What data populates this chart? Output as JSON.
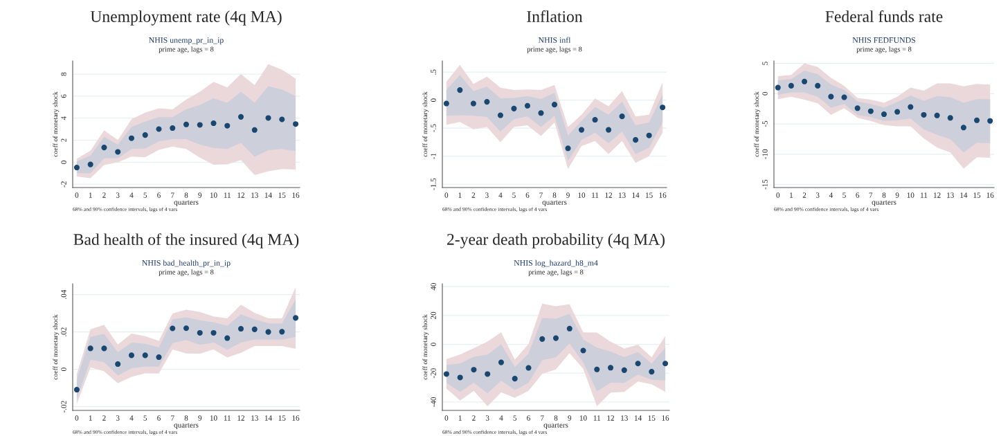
{
  "chart_data": [
    {
      "type": "scatter",
      "title": "Unemployment rate (4q MA)",
      "subtitle": "NHIS unemp_pr_in_ip",
      "xlabel": "quarters",
      "ylabel": "coeff of monetary shock",
      "annotations": [
        "prime age, lags = 8",
        "68% and 90% confidence intervals, lags of 4 vars"
      ],
      "x": [
        0,
        1,
        2,
        3,
        4,
        5,
        6,
        7,
        8,
        9,
        10,
        11,
        12,
        13,
        14,
        15,
        16
      ],
      "xlim": [
        -0.3,
        16.3
      ],
      "xticks": [
        0,
        1,
        2,
        3,
        4,
        5,
        6,
        7,
        8,
        9,
        10,
        11,
        12,
        13,
        14,
        15,
        16
      ],
      "ylim": [
        -2.3,
        9.2
      ],
      "yticks": [
        -2,
        0,
        2,
        4,
        6,
        8
      ],
      "grid": "y",
      "marker": "circle",
      "series": [
        {
          "type": "area",
          "color": "#ead8db",
          "values": [
            null,
            null,
            null,
            null,
            null,
            null,
            null,
            null,
            null,
            null,
            null,
            null,
            null,
            null,
            null,
            null,
            null
          ],
          "lower": [
            -1.3,
            -1.45,
            -0.25,
            0.0,
            0.52,
            0.45,
            1.13,
            1.42,
            1.2,
            0.42,
            -0.23,
            -0.2,
            0.2,
            -1.17,
            -0.83,
            -0.62,
            -0.67
          ],
          "upper": [
            0.33,
            1.05,
            2.9,
            2.0,
            3.9,
            4.5,
            4.9,
            4.8,
            5.7,
            6.4,
            7.3,
            6.8,
            8.0,
            7.0,
            8.9,
            8.4,
            7.6
          ]
        },
        {
          "type": "area",
          "color": "#cdcfda",
          "values": [
            null,
            null,
            null,
            null,
            null,
            null,
            null,
            null,
            null,
            null,
            null,
            null,
            null,
            null,
            null,
            null,
            null
          ],
          "lower": [
            -1.0,
            -1.0,
            0.35,
            0.35,
            1.2,
            1.25,
            1.9,
            2.1,
            2.1,
            1.6,
            1.3,
            1.2,
            1.75,
            0.5,
            1.1,
            1.2,
            1.0
          ],
          "upper": [
            0.08,
            0.6,
            2.3,
            1.6,
            3.2,
            3.7,
            4.1,
            4.1,
            4.8,
            5.2,
            5.8,
            5.4,
            6.4,
            5.4,
            6.9,
            6.6,
            6.0
          ]
        },
        {
          "type": "scatter",
          "color": "#1a476f",
          "values": [
            -0.48,
            -0.2,
            1.34,
            0.94,
            2.18,
            2.47,
            3.01,
            3.1,
            3.43,
            3.39,
            3.54,
            3.31,
            4.12,
            2.93,
            4.02,
            3.89,
            3.47
          ]
        }
      ]
    },
    {
      "type": "scatter",
      "title": "Inflation",
      "subtitle": "NHIS infl",
      "xlabel": "quarters",
      "ylabel": "coeff of monetary shock",
      "annotations": [
        "prime age, lags = 8",
        "68% and 90% confidence intervals, lags of 4 vars"
      ],
      "x": [
        0,
        1,
        2,
        3,
        4,
        5,
        6,
        7,
        8,
        9,
        10,
        11,
        12,
        13,
        14,
        15,
        16
      ],
      "xlim": [
        -0.3,
        16.3
      ],
      "xticks": [
        0,
        1,
        2,
        3,
        4,
        5,
        6,
        7,
        8,
        9,
        10,
        11,
        12,
        13,
        14,
        15,
        16
      ],
      "ylim": [
        -1.56,
        0.7
      ],
      "yticks": [
        {
          "value": -1.5,
          "label": "-1.5"
        },
        -1,
        {
          "value": -0.5,
          "label": "-.5"
        },
        0,
        {
          "value": 0.5,
          "label": ".5"
        }
      ],
      "grid": "y",
      "marker": "circle",
      "series": [
        {
          "type": "area",
          "color": "#ead8db",
          "values": [
            null,
            null,
            null,
            null,
            null,
            null,
            null,
            null,
            null,
            null,
            null,
            null,
            null,
            null,
            null,
            null,
            null
          ],
          "lower": [
            -0.44,
            -0.39,
            -0.52,
            -0.48,
            -0.75,
            -0.48,
            -0.45,
            -0.64,
            -0.4,
            -1.23,
            -0.82,
            -0.73,
            -0.96,
            -0.73,
            -1.12,
            -1.0,
            -0.58
          ],
          "upper": [
            0.33,
            0.63,
            0.29,
            0.42,
            0.22,
            0.18,
            0.19,
            0.18,
            0.27,
            -0.48,
            -0.26,
            0.03,
            -0.11,
            0.16,
            -0.29,
            -0.26,
            0.32
          ]
        },
        {
          "type": "area",
          "color": "#cdcfda",
          "values": [
            null,
            null,
            null,
            null,
            null,
            null,
            null,
            null,
            null,
            null,
            null,
            null,
            null,
            null,
            null,
            null,
            null
          ],
          "lower": [
            -0.28,
            -0.27,
            -0.28,
            -0.3,
            -0.56,
            -0.34,
            -0.29,
            -0.48,
            -0.28,
            -1.08,
            -0.71,
            -0.58,
            -0.77,
            -0.56,
            -0.96,
            -0.85,
            -0.4
          ],
          "upper": [
            0.18,
            0.45,
            0.16,
            0.24,
            0.03,
            0.04,
            0.07,
            0.02,
            0.13,
            -0.63,
            -0.37,
            -0.12,
            -0.26,
            -0.03,
            -0.45,
            -0.4,
            0.1
          ]
        },
        {
          "type": "scatter",
          "color": "#1a476f",
          "values": [
            -0.06,
            0.18,
            -0.06,
            -0.03,
            -0.27,
            -0.15,
            -0.1,
            -0.23,
            -0.08,
            -0.86,
            -0.53,
            -0.35,
            -0.53,
            -0.29,
            -0.71,
            -0.63,
            -0.13
          ]
        }
      ]
    },
    {
      "type": "scatter",
      "title": "Federal funds rate",
      "subtitle": "NHIS FEDFUNDS",
      "xlabel": "quarters",
      "ylabel": "coeff of monetary shock",
      "annotations": [
        "prime age, lags = 8",
        "68% and 90% confidence intervals, lags of 4 vars"
      ],
      "x": [
        0,
        1,
        2,
        3,
        4,
        5,
        6,
        7,
        8,
        9,
        10,
        11,
        12,
        13,
        14,
        15,
        16
      ],
      "xlim": [
        -0.3,
        16.3
      ],
      "xticks": [
        0,
        1,
        2,
        3,
        4,
        5,
        6,
        7,
        8,
        9,
        10,
        11,
        12,
        13,
        14,
        15,
        16
      ],
      "ylim": [
        -15.5,
        5.4
      ],
      "yticks": [
        -15,
        -10,
        -5,
        0,
        5
      ],
      "grid": "y",
      "marker": "circle",
      "series": [
        {
          "type": "area",
          "color": "#ead8db",
          "values": [
            null,
            null,
            null,
            null,
            null,
            null,
            null,
            null,
            null,
            null,
            null,
            null,
            null,
            null,
            null,
            null,
            null
          ],
          "lower": [
            -0.9,
            -0.5,
            -1.0,
            -1.6,
            -3.5,
            -2.4,
            -4.0,
            -4.5,
            -5.2,
            -5.4,
            -5.4,
            -7.4,
            -8.9,
            -9.7,
            -12.4,
            -10.5,
            -10.6
          ],
          "upper": [
            2.9,
            3.1,
            5.0,
            4.4,
            2.6,
            1.3,
            -0.7,
            -1.0,
            -1.5,
            -0.5,
            1.0,
            0.5,
            1.7,
            1.7,
            1.2,
            1.6,
            1.5
          ]
        },
        {
          "type": "area",
          "color": "#cdcfda",
          "values": [
            null,
            null,
            null,
            null,
            null,
            null,
            null,
            null,
            null,
            null,
            null,
            null,
            null,
            null,
            null,
            null,
            null
          ],
          "lower": [
            -0.2,
            0.2,
            0.2,
            -0.5,
            -2.3,
            -1.7,
            -3.5,
            -3.9,
            -4.5,
            -4.4,
            -4.1,
            -5.9,
            -6.8,
            -7.5,
            -9.7,
            -8.1,
            -8.2
          ],
          "upper": [
            2.2,
            2.4,
            3.8,
            3.2,
            1.5,
            0.6,
            -1.3,
            -1.7,
            -2.3,
            -1.4,
            -0.3,
            -1.2,
            -0.4,
            -0.6,
            -1.5,
            -0.9,
            -0.9
          ]
        },
        {
          "type": "scatter",
          "color": "#1a476f",
          "values": [
            1.0,
            1.3,
            2.0,
            1.3,
            -0.5,
            -0.6,
            -2.4,
            -2.9,
            -3.4,
            -3.0,
            -2.2,
            -3.5,
            -3.6,
            -4.0,
            -5.6,
            -4.4,
            -4.5
          ]
        }
      ]
    },
    {
      "type": "scatter",
      "title": "Bad health of the insured (4q MA)",
      "subtitle": "NHIS bad_health_pr_in_ip",
      "xlabel": "quarters",
      "ylabel": "coeff of monetary shock",
      "annotations": [
        "prime age, lags = 8",
        "68% and 90% confidence intervals, lags of 4 vars"
      ],
      "x": [
        0,
        1,
        2,
        3,
        4,
        5,
        6,
        7,
        8,
        9,
        10,
        11,
        12,
        13,
        14,
        15,
        16
      ],
      "xlim": [
        -0.3,
        16.3
      ],
      "xticks": [
        0,
        1,
        2,
        3,
        4,
        5,
        6,
        7,
        8,
        9,
        10,
        11,
        12,
        13,
        14,
        15,
        16
      ],
      "ylim": [
        -0.022,
        0.0458
      ],
      "yticks": [
        {
          "value": -0.02,
          "label": "-.02"
        },
        0,
        {
          "value": 0.02,
          "label": ".02"
        },
        {
          "value": 0.04,
          "label": ".04"
        }
      ],
      "grid": "y",
      "marker": "circle",
      "series": [
        {
          "type": "area",
          "color": "#ead8db",
          "values": [
            null,
            null,
            null,
            null,
            null,
            null,
            null,
            null,
            null,
            null,
            null,
            null,
            null,
            null,
            null,
            null,
            null
          ],
          "lower": [
            -0.0186,
            0.0011,
            -0.0011,
            -0.0075,
            -0.004,
            -0.0022,
            -0.0023,
            0.0106,
            0.0085,
            0.0084,
            0.0106,
            0.0063,
            0.0088,
            0.0125,
            0.0125,
            0.0125,
            0.011
          ],
          "upper": [
            -0.0026,
            0.0214,
            0.0238,
            0.0133,
            0.0191,
            0.0177,
            0.0152,
            0.0299,
            0.0319,
            0.0307,
            0.0283,
            0.0273,
            0.0346,
            0.0302,
            0.0273,
            0.0273,
            0.044
          ]
        },
        {
          "type": "area",
          "color": "#cdcfda",
          "values": [
            null,
            null,
            null,
            null,
            null,
            null,
            null,
            null,
            null,
            null,
            null,
            null,
            null,
            null,
            null,
            null,
            null
          ],
          "lower": [
            -0.0159,
            0.0051,
            0.0038,
            -0.0033,
            0.0006,
            0.0014,
            0.0014,
            0.014,
            0.0157,
            0.0131,
            0.0143,
            0.0105,
            0.0143,
            0.016,
            0.0159,
            0.0159,
            0.0174
          ],
          "upper": [
            -0.0054,
            0.0174,
            0.0189,
            0.0091,
            0.0143,
            0.0137,
            0.0117,
            0.0267,
            0.0278,
            0.0263,
            0.0251,
            0.0233,
            0.0294,
            0.0267,
            0.0246,
            0.0246,
            0.0374
          ]
        },
        {
          "type": "scatter",
          "color": "#1a476f",
          "values": [
            -0.0109,
            0.0112,
            0.0112,
            0.0028,
            0.0075,
            0.0075,
            0.0065,
            0.0219,
            0.022,
            0.0195,
            0.0195,
            0.0167,
            0.0217,
            0.0214,
            0.02,
            0.0201,
            0.0275
          ]
        }
      ]
    },
    {
      "type": "scatter",
      "title": "2-year death probability (4q MA)",
      "subtitle": "NHIS log_hazard_h8_m4",
      "xlabel": "quarters",
      "ylabel": "coeff of monetary shock",
      "annotations": [
        "prime age, lags = 8",
        "68% and 90% confidence intervals, lags of 4 vars"
      ],
      "x": [
        0,
        1,
        2,
        3,
        4,
        5,
        6,
        7,
        8,
        9,
        10,
        11,
        12,
        13,
        14,
        15,
        16
      ],
      "xlim": [
        -0.3,
        16.3
      ],
      "xticks": [
        0,
        1,
        2,
        3,
        4,
        5,
        6,
        7,
        8,
        9,
        10,
        11,
        12,
        13,
        14,
        15,
        16
      ],
      "ylim": [
        -45.8,
        42
      ],
      "yticks": [
        -40,
        -20,
        0,
        20,
        40
      ],
      "grid": "y",
      "marker": "circle",
      "series": [
        {
          "type": "area",
          "color": "#ead8db",
          "values": [
            null,
            null,
            null,
            null,
            null,
            null,
            null,
            null,
            null,
            null,
            null,
            null,
            null,
            null,
            null,
            null,
            null
          ],
          "lower": [
            -30.7,
            -39,
            -32.3,
            -42.9,
            -33.3,
            -37.1,
            -32.3,
            -20.5,
            -17.4,
            -6.1,
            -17,
            -42.9,
            -33.4,
            -33,
            -25.8,
            -27.7,
            -33
          ],
          "upper": [
            -10.2,
            -7,
            -2.6,
            1.9,
            8.3,
            -10.6,
            0.3,
            28.2,
            26.4,
            27.8,
            8.3,
            8.2,
            1.8,
            -2.9,
            -0.2,
            -9,
            5.9
          ]
        },
        {
          "type": "area",
          "color": "#cdcfda",
          "values": [
            null,
            null,
            null,
            null,
            null,
            null,
            null,
            null,
            null,
            null,
            null,
            null,
            null,
            null,
            null,
            null,
            null
          ],
          "lower": [
            -26.7,
            -33,
            -26.6,
            -33.9,
            -25.3,
            -31.7,
            -26.6,
            -11,
            -9,
            0.6,
            -12.6,
            -32.5,
            -26.6,
            -26.7,
            -21,
            -24.6,
            -25
          ],
          "upper": [
            -14.2,
            -13.3,
            -8.6,
            -7.2,
            0,
            -15.8,
            -6.4,
            18.2,
            17.8,
            21.1,
            3.4,
            -2.2,
            -5,
            -8.8,
            -5.4,
            -13.4,
            -2.4
          ]
        },
        {
          "type": "scatter",
          "color": "#1a476f",
          "values": [
            -20.6,
            -23,
            -17.6,
            -20.6,
            -12.5,
            -23.8,
            -16.3,
            3.7,
            4.3,
            10.9,
            -4.3,
            -17.4,
            -16.2,
            -17.9,
            -13.3,
            -19,
            -13.3
          ]
        }
      ]
    }
  ]
}
